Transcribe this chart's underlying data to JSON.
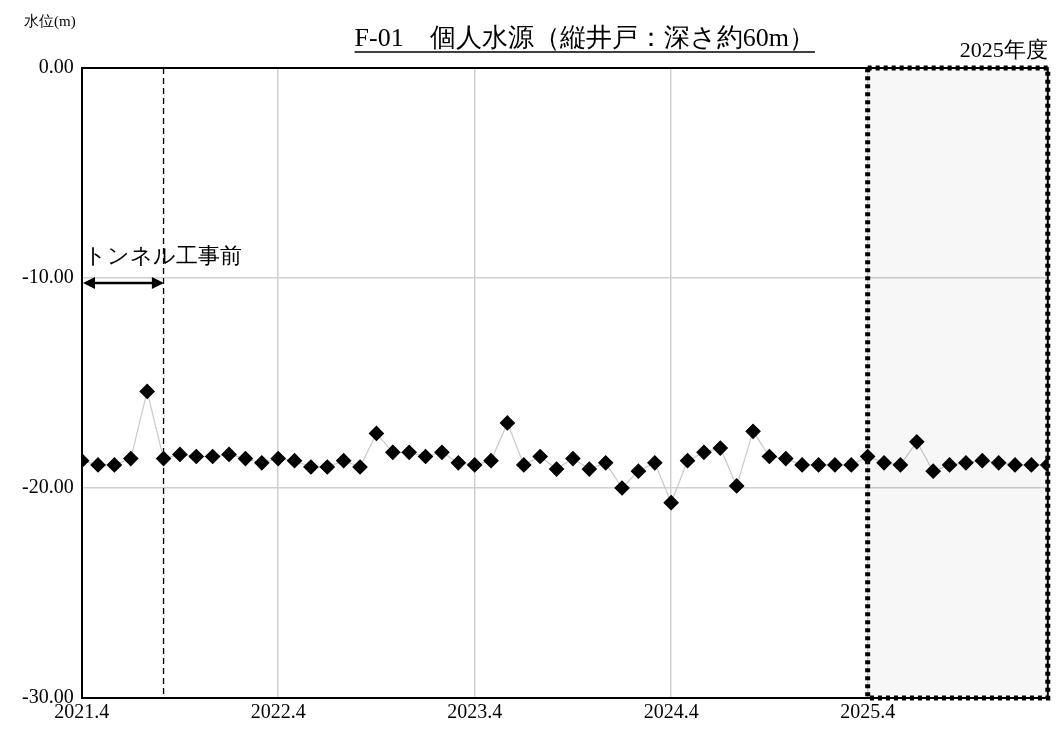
{
  "chart_data": {
    "type": "line",
    "title": "F-01　個人水源（縦井戸：深さ約60m）",
    "ylabel": "水位(m)",
    "x": [
      "2021-04",
      "2021-05",
      "2021-06",
      "2021-07",
      "2021-08",
      "2021-09",
      "2021-10",
      "2021-11",
      "2021-12",
      "2022-01",
      "2022-02",
      "2022-03",
      "2022-04",
      "2022-05",
      "2022-06",
      "2022-07",
      "2022-08",
      "2022-09",
      "2022-10",
      "2022-11",
      "2022-12",
      "2023-01",
      "2023-02",
      "2023-03",
      "2023-04",
      "2023-05",
      "2023-06",
      "2023-07",
      "2023-08",
      "2023-09",
      "2023-10",
      "2023-11",
      "2023-12",
      "2024-01",
      "2024-02",
      "2024-03",
      "2024-04",
      "2024-05",
      "2024-06",
      "2024-07",
      "2024-08",
      "2024-09",
      "2024-10",
      "2024-11",
      "2024-12",
      "2025-01",
      "2025-02",
      "2025-03",
      "2025-04",
      "2025-05",
      "2025-06",
      "2025-07",
      "2025-08",
      "2025-09",
      "2025-10",
      "2025-11",
      "2025-12",
      "2026-01",
      "2026-02",
      "2026-03"
    ],
    "series": [
      {
        "color": "#000000",
        "values": [
          -18.7,
          -18.9,
          -18.9,
          -18.6,
          -15.4,
          -18.6,
          -18.4,
          -18.5,
          -18.5,
          -18.4,
          -18.6,
          -18.8,
          -18.6,
          -18.7,
          -19.0,
          -19.0,
          -18.7,
          -19.0,
          -17.4,
          -18.3,
          -18.3,
          -18.5,
          -18.3,
          -18.8,
          -18.9,
          -18.7,
          -16.9,
          -18.9,
          -18.5,
          -19.1,
          -18.6,
          -19.1,
          -18.8,
          -20.0,
          -19.2,
          -18.8,
          -20.7,
          -18.7,
          -18.3,
          -18.1,
          -19.9,
          -17.3,
          -18.5,
          -18.6,
          -18.9,
          -18.9,
          -18.9,
          -18.9,
          -18.5,
          -18.8,
          -18.9,
          -17.8,
          -19.2,
          -18.9,
          -18.8,
          -18.7,
          -18.8,
          -18.9,
          -18.9,
          -18.9
        ]
      }
    ],
    "xlim": [
      "2021-04",
      "2026-03"
    ],
    "xticks": [
      {
        "value": "2021-04",
        "label": "2021.4"
      },
      {
        "value": "2022-04",
        "label": "2022.4"
      },
      {
        "value": "2023-04",
        "label": "2023.4"
      },
      {
        "value": "2024-04",
        "label": "2024.4"
      },
      {
        "value": "2025-04",
        "label": "2025.4"
      }
    ],
    "ylim": [
      -30,
      0
    ],
    "yticks": [
      {
        "value": -30,
        "label": "-30.00"
      },
      {
        "value": -20,
        "label": "-20.00"
      },
      {
        "value": -10,
        "label": "-10.00"
      },
      {
        "value": 0,
        "label": "0.00"
      }
    ],
    "grid": true,
    "marker": "diamond",
    "legend": false,
    "ref_lines": [
      {
        "axis": "x",
        "value": "2021-09",
        "line_style": "dashed",
        "color": "#000000"
      }
    ],
    "bands": [
      {
        "axis": "x",
        "from": "2025-04",
        "to": "2026-03",
        "label": "2025年度",
        "color": "#000000"
      }
    ],
    "annotations": [
      "トンネル工事前"
    ]
  }
}
